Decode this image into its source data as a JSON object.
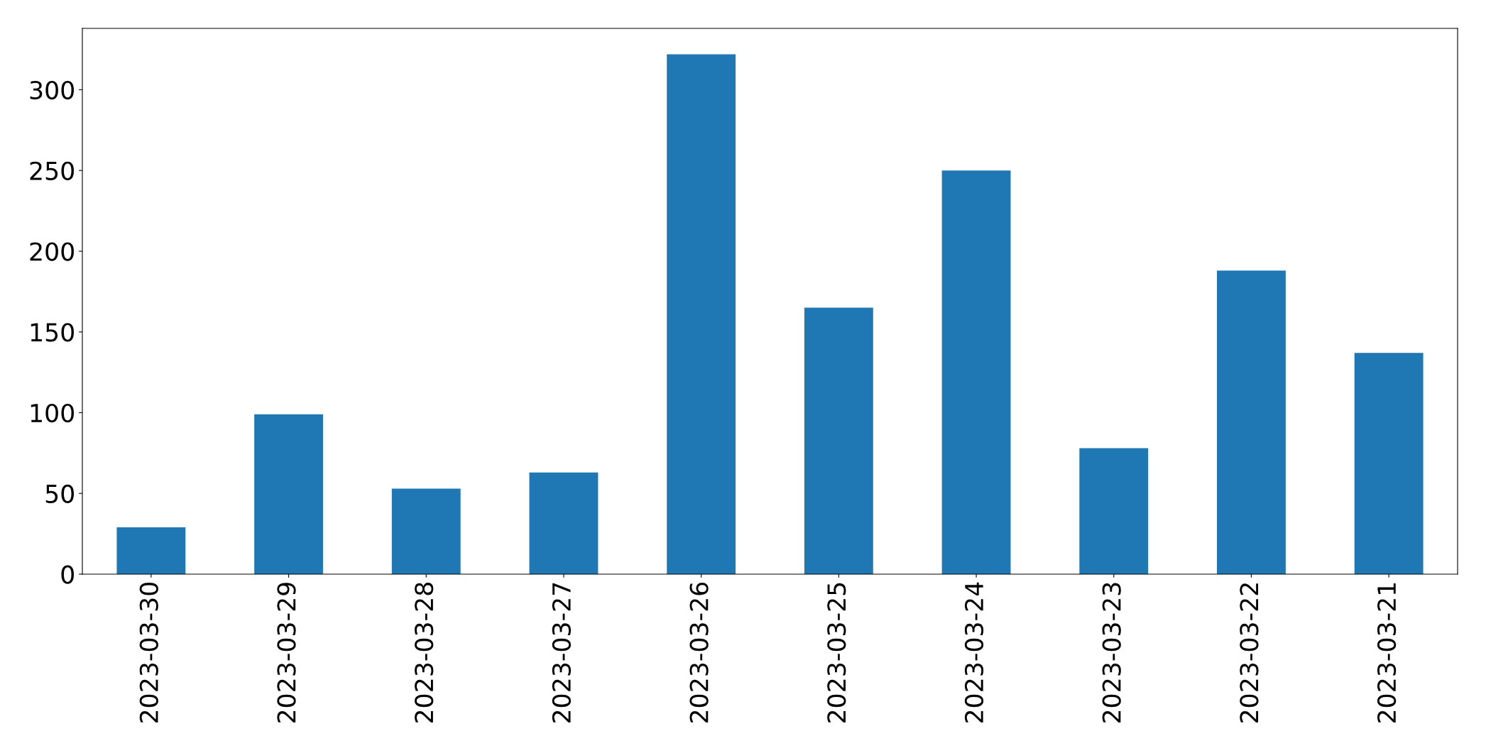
{
  "chart_data": {
    "type": "bar",
    "categories": [
      "2023-03-30",
      "2023-03-29",
      "2023-03-28",
      "2023-03-27",
      "2023-03-26",
      "2023-03-25",
      "2023-03-24",
      "2023-03-23",
      "2023-03-22",
      "2023-03-21"
    ],
    "values": [
      29,
      99,
      53,
      63,
      322,
      165,
      250,
      78,
      188,
      137
    ],
    "color": "#1f77b4",
    "ylim": [
      0,
      338
    ],
    "yticks": [
      0,
      50,
      100,
      150,
      200,
      250,
      300
    ],
    "grid": false
  }
}
